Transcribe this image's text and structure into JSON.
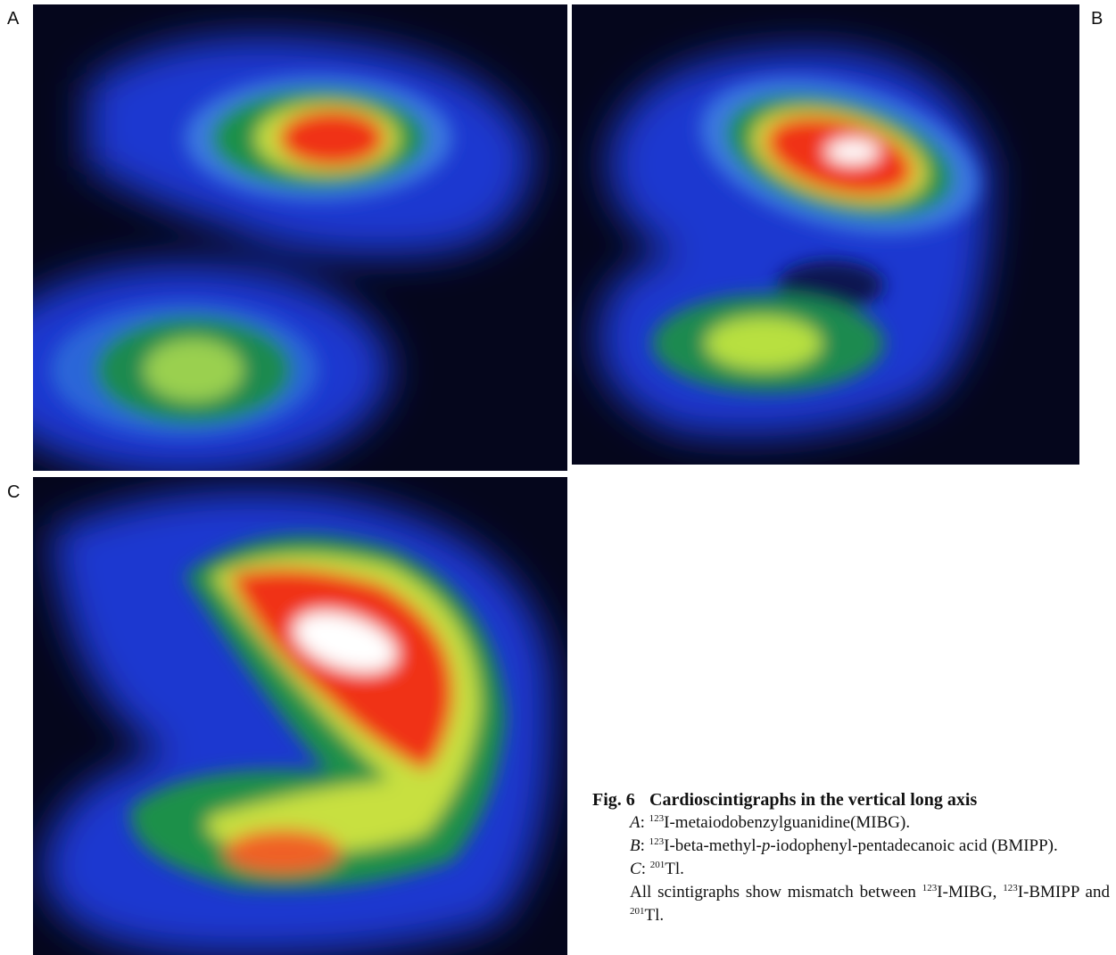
{
  "panels": [
    {
      "label": "A"
    },
    {
      "label": "B"
    },
    {
      "label": "C"
    }
  ],
  "caption": {
    "number": "Fig. 6",
    "title": "Cardioscintigraphs in the vertical long axis",
    "lines": [
      [
        "A",
        ":",
        "123",
        "I-metaiodobenzylguanidine(MIBG)."
      ],
      [
        "B",
        ":",
        "123",
        "I-beta-methyl-",
        "p",
        "-iodophenyl-pentadecanoic acid (BMIPP)."
      ],
      [
        "C",
        ":",
        "201",
        "Tl."
      ],
      [
        "All scintigraphs show mismatch between ",
        "123",
        "I-MIBG, ",
        "123",
        "I-BMIPP and ",
        "201",
        "Tl."
      ]
    ]
  }
}
